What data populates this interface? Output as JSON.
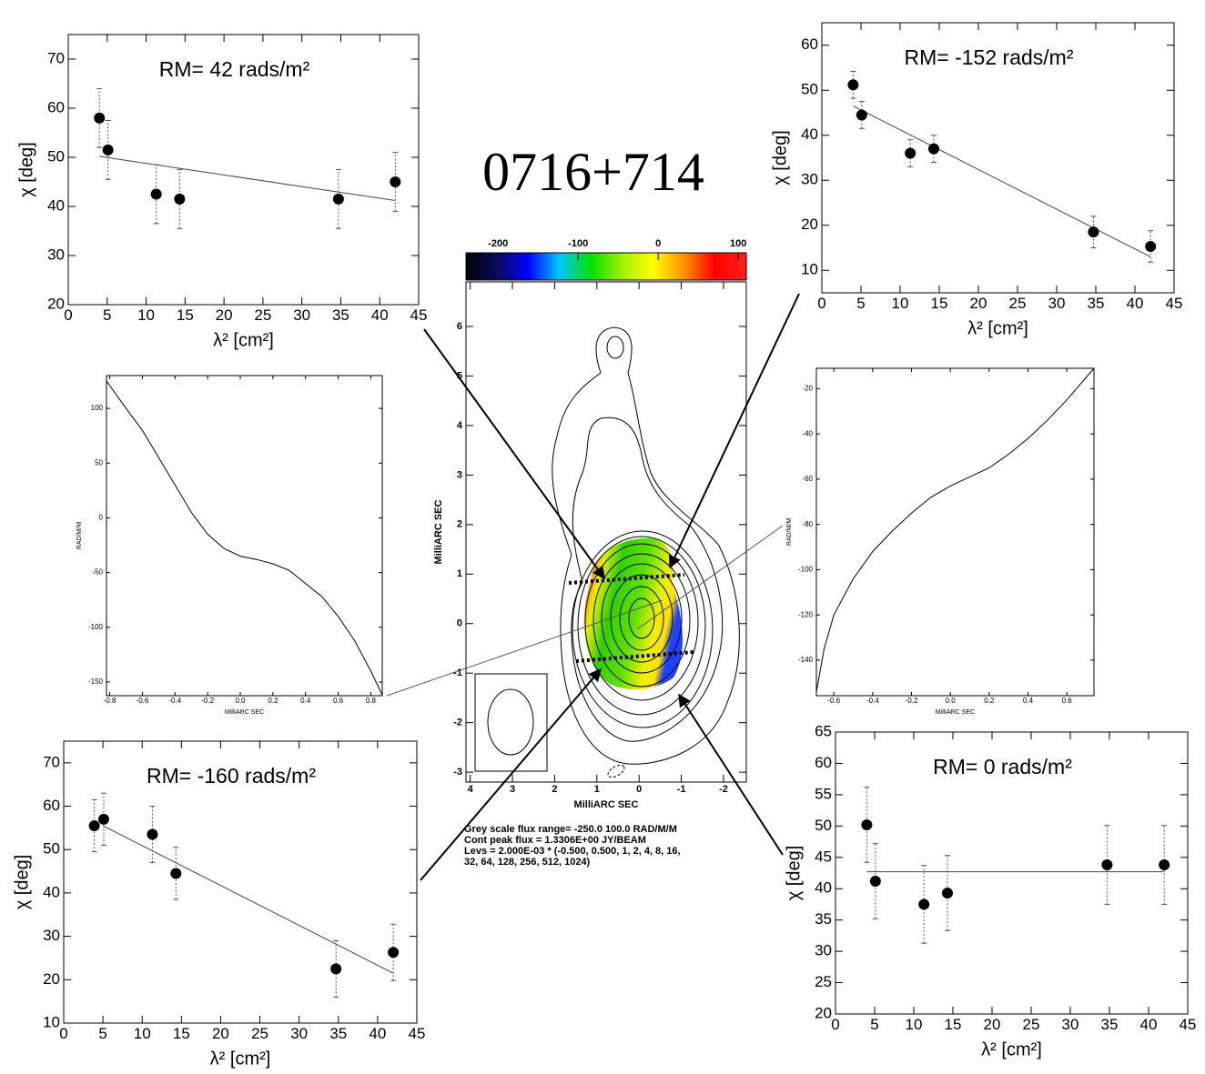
{
  "chart_data": [
    {
      "type": "scatter",
      "title": "RM= 42 rads/m²",
      "x_label": "λ² [cm²]",
      "y_label": "χ [deg]",
      "x": [
        4,
        5.1,
        11.3,
        14.3,
        34.7,
        42
      ],
      "values": [
        58,
        51.5,
        42.5,
        41.5,
        41.5,
        45
      ],
      "errors": [
        6,
        6,
        6,
        6,
        6,
        6
      ],
      "fit": {
        "x": [
          4,
          42
        ],
        "values": [
          50.2,
          41.2
        ]
      },
      "xlim": [
        0,
        45
      ],
      "ylim": [
        20,
        75
      ],
      "xticks": [
        0,
        5,
        10,
        15,
        20,
        25,
        30,
        35,
        40,
        45
      ],
      "yticks": [
        20,
        30,
        40,
        50,
        60,
        70
      ],
      "color": "#000000"
    },
    {
      "type": "scatter",
      "title": "RM= -152 rads/m²",
      "x_label": "λ² [cm²]",
      "y_label": "χ [deg]",
      "x": [
        4,
        5.1,
        11.3,
        14.3,
        34.7,
        42
      ],
      "values": [
        51.2,
        44.5,
        36,
        37,
        18.5,
        15.3
      ],
      "errors": [
        3,
        3,
        3,
        3,
        3.5,
        3.5
      ],
      "fit": {
        "x": [
          4,
          42
        ],
        "values": [
          46.5,
          13
        ]
      },
      "xlim": [
        0,
        45
      ],
      "ylim": [
        5,
        65
      ],
      "xticks": [
        0,
        5,
        10,
        15,
        20,
        25,
        30,
        35,
        40,
        45
      ],
      "yticks": [
        10,
        20,
        30,
        40,
        50,
        60
      ],
      "color": "#000000"
    },
    {
      "type": "scatter",
      "title": "RM= -160 rads/m²",
      "x_label": "λ² [cm²]",
      "y_label": "χ [deg]",
      "x": [
        3.9,
        5.1,
        11.3,
        14.3,
        34.7,
        42
      ],
      "values": [
        55.5,
        57,
        53.5,
        44.5,
        22.5,
        26.3
      ],
      "errors": [
        6,
        6,
        6.5,
        6,
        6.5,
        6.5
      ],
      "fit": {
        "x": [
          5,
          42
        ],
        "values": [
          55.5,
          21.5
        ]
      },
      "xlim": [
        0,
        45
      ],
      "ylim": [
        10,
        75
      ],
      "xticks": [
        0,
        5,
        10,
        15,
        20,
        25,
        30,
        35,
        40,
        45
      ],
      "yticks": [
        10,
        20,
        30,
        40,
        50,
        60,
        70
      ],
      "color": "#000000"
    },
    {
      "type": "scatter",
      "title": "RM= 0 rads/m²",
      "x_label": "λ² [cm²]",
      "y_label": "χ [deg]",
      "x": [
        4,
        5.1,
        11.3,
        14.3,
        34.7,
        42
      ],
      "values": [
        50.2,
        41.2,
        37.5,
        39.3,
        43.8,
        43.8
      ],
      "errors": [
        6,
        6,
        6.2,
        6,
        6.3,
        6.3
      ],
      "fit": {
        "x": [
          4,
          42
        ],
        "values": [
          42.7,
          42.7
        ]
      },
      "xlim": [
        0,
        45
      ],
      "ylim": [
        20,
        65
      ],
      "xticks": [
        0,
        5,
        10,
        15,
        20,
        25,
        30,
        35,
        40,
        45
      ],
      "yticks": [
        20,
        25,
        30,
        35,
        40,
        45,
        50,
        55,
        60,
        65
      ],
      "color": "#000000"
    },
    {
      "type": "line",
      "x_label": "MilliARC SEC",
      "y_label": "RAD/M/M",
      "x": [
        -0.82,
        -0.7,
        -0.6,
        -0.5,
        -0.4,
        -0.3,
        -0.2,
        -0.1,
        0,
        0.1,
        0.2,
        0.3,
        0.4,
        0.5,
        0.6,
        0.7,
        0.8,
        0.87
      ],
      "values": [
        125,
        100,
        80,
        55,
        30,
        5,
        -15,
        -28,
        -35,
        -38,
        -42,
        -48,
        -60,
        -72,
        -90,
        -112,
        -140,
        -162
      ],
      "xlim": [
        -0.82,
        0.87
      ],
      "ylim": [
        -162.5,
        130
      ],
      "xticks": [
        -0.8,
        -0.6,
        -0.4,
        -0.2,
        {
          "value": 0,
          "label": "0.0"
        },
        0.2,
        0.4,
        0.6,
        0.8
      ],
      "yticks": [
        -150,
        -100,
        -50,
        0,
        50,
        100
      ],
      "color": "#000000"
    },
    {
      "type": "line",
      "x_label": "MilliARC SEC",
      "y_label": "RAD/M/M",
      "x": [
        -0.69,
        -0.65,
        -0.6,
        -0.5,
        -0.4,
        -0.3,
        -0.2,
        -0.1,
        0,
        0.1,
        0.2,
        0.3,
        0.4,
        0.5,
        0.6,
        0.74
      ],
      "values": [
        -154,
        -135,
        -120,
        -104,
        -92,
        -83,
        -75,
        -68,
        -63,
        -59,
        -55,
        -49,
        -42,
        -34,
        -25,
        -11
      ],
      "xlim": [
        -0.69,
        0.74
      ],
      "ylim": [
        -155.7,
        -11
      ],
      "xticks": [
        -0.6,
        -0.4,
        -0.2,
        {
          "value": 0,
          "label": "0.0"
        },
        0.2,
        0.4,
        0.6
      ],
      "yticks": [
        -140,
        -120,
        -100,
        -80,
        -60,
        -40,
        -20
      ],
      "color": "#000000"
    },
    {
      "type": "image",
      "title": "0716+714",
      "x_label": "MilliARC SEC",
      "y_label": "MilliARC SEC",
      "xlim": [
        4.1,
        -2.54
      ],
      "ylim": [
        -3.2,
        6.9
      ],
      "xticks": [
        4,
        3,
        2,
        1,
        0,
        -1,
        -2
      ],
      "yticks": [
        -3,
        -2,
        -1,
        0,
        1,
        2,
        3,
        4,
        5,
        6
      ],
      "colorbar": {
        "lim": [
          -240,
          110
        ],
        "ticks": [
          -200,
          -100,
          0,
          100
        ],
        "colors": [
          "#000000",
          "#0a0a60",
          "#0000ff",
          "#00c8ff",
          "#00e000",
          "#a0f000",
          "#ffff00",
          "#ff9000",
          "#ff0000",
          "#ff2020"
        ]
      },
      "notes": [
        "Grey scale flux range= -250.0 100.0 RAD/M/M",
        "Cont peak flux =  1.3306E+00 JY/BEAM",
        "Levs = 2.000E-03 * (-0.500, 0.500, 1, 2, 4, 8, 16,",
        "32, 64, 128, 256, 512, 1024)"
      ]
    }
  ]
}
